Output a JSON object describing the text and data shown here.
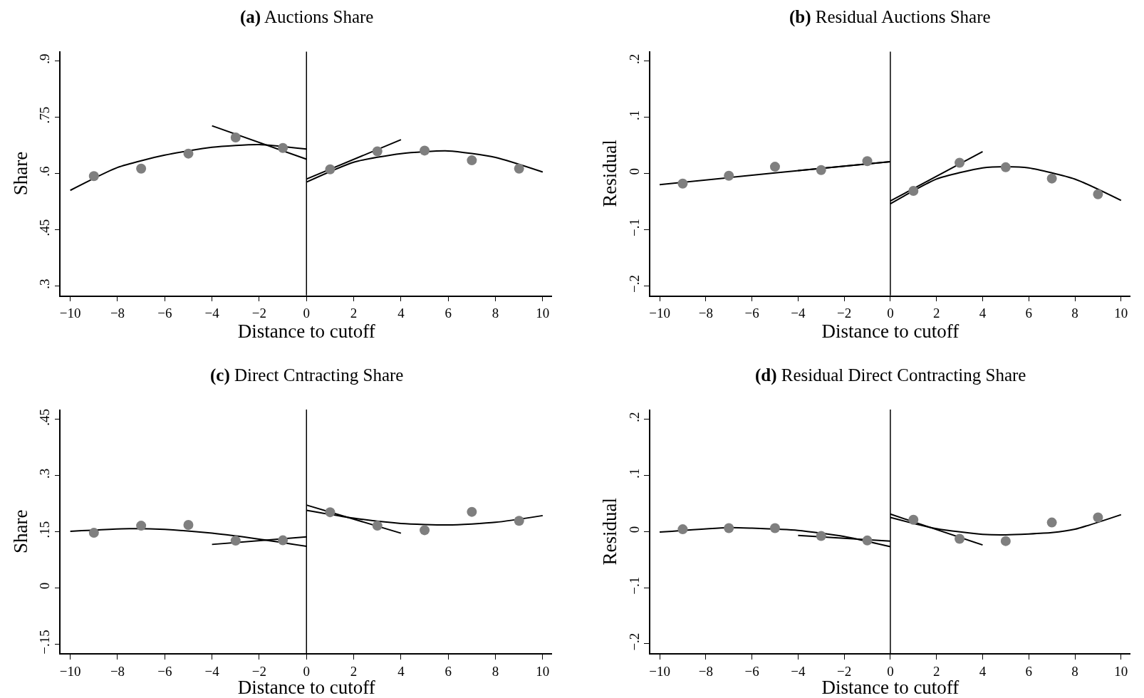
{
  "chart_data": [
    {
      "type": "scatter",
      "title": "(a) Auctions Share",
      "xlabel": "Distance to cutoff",
      "ylabel": "Share",
      "xlim": [
        -10.4,
        10.4
      ],
      "xticks": [
        -10,
        -8,
        -6,
        -4,
        -2,
        0,
        2,
        4,
        6,
        8,
        10
      ],
      "ylim": [
        0.275,
        0.925
      ],
      "yticks": [
        {
          "value": 0.3,
          "label": ".3"
        },
        {
          "value": 0.45,
          "label": ".45"
        },
        {
          "value": 0.6,
          "label": ".6"
        },
        {
          "value": 0.75,
          "label": ".75"
        },
        {
          "value": 0.9,
          "label": ".9"
        }
      ],
      "ref_lines": [
        {
          "axis": "x",
          "value": 0,
          "color": "#000000"
        }
      ],
      "series": [
        {
          "marker": "circle",
          "color": "#7f7f7f",
          "x": [
            -9,
            -7,
            -5,
            -3,
            -1,
            1,
            3,
            5,
            7,
            9
          ],
          "values": [
            0.593,
            0.613,
            0.653,
            0.696,
            0.668,
            0.611,
            0.659,
            0.661,
            0.635,
            0.613
          ]
        },
        {
          "type": "line",
          "marker": "none",
          "color": "#000000",
          "x": [
            -10,
            -8,
            -6,
            -4,
            -2,
            0
          ],
          "values": [
            0.555,
            0.616,
            0.649,
            0.67,
            0.677,
            0.665
          ]
        },
        {
          "type": "line",
          "marker": "none",
          "color": "#000000",
          "x": [
            -4,
            0
          ],
          "values": [
            0.727,
            0.638
          ]
        },
        {
          "type": "line",
          "marker": "none",
          "color": "#000000",
          "x": [
            0,
            2,
            4,
            6,
            8,
            10
          ],
          "values": [
            0.577,
            0.63,
            0.653,
            0.66,
            0.643,
            0.604
          ]
        },
        {
          "type": "line",
          "marker": "none",
          "color": "#000000",
          "x": [
            0,
            4
          ],
          "values": [
            0.585,
            0.69
          ]
        }
      ]
    },
    {
      "type": "scatter",
      "title": "(b) Residual Auctions Share",
      "xlabel": "Distance to cutoff",
      "ylabel": "Residual",
      "xlim": [
        -10.4,
        10.4
      ],
      "xticks": [
        -10,
        -8,
        -6,
        -4,
        -2,
        0,
        2,
        4,
        6,
        8,
        10
      ],
      "ylim": [
        -0.217,
        0.217
      ],
      "yticks": [
        {
          "value": -0.2,
          "label": "−.2"
        },
        {
          "value": -0.1,
          "label": "−.1"
        },
        {
          "value": 0,
          "label": "0"
        },
        {
          "value": 0.1,
          "label": ".1"
        },
        {
          "value": 0.2,
          "label": ".2"
        }
      ],
      "ref_lines": [
        {
          "axis": "x",
          "value": 0,
          "color": "#000000"
        }
      ],
      "series": [
        {
          "marker": "circle",
          "color": "#7f7f7f",
          "x": [
            -9,
            -7,
            -5,
            -3,
            -1,
            1,
            3,
            5,
            7,
            9
          ],
          "values": [
            -0.018,
            -0.004,
            0.012,
            0.006,
            0.022,
            -0.031,
            0.019,
            0.011,
            -0.009,
            -0.037
          ]
        },
        {
          "type": "line",
          "marker": "none",
          "color": "#000000",
          "x": [
            -10,
            -5,
            0
          ],
          "values": [
            -0.02,
            0.001,
            0.021
          ]
        },
        {
          "type": "line",
          "marker": "none",
          "color": "#000000",
          "x": [
            -4,
            0
          ],
          "values": [
            0.005,
            0.021
          ]
        },
        {
          "type": "line",
          "marker": "none",
          "color": "#000000",
          "x": [
            0,
            2,
            4,
            5,
            6,
            8,
            10
          ],
          "values": [
            -0.054,
            -0.01,
            0.01,
            0.012,
            0.01,
            -0.01,
            -0.048
          ]
        },
        {
          "type": "line",
          "marker": "none",
          "color": "#000000",
          "x": [
            0,
            4
          ],
          "values": [
            -0.049,
            0.039
          ]
        }
      ]
    },
    {
      "type": "scatter",
      "title": "(c) Direct Cntracting Share",
      "xlabel": "Distance to cutoff",
      "ylabel": "Share",
      "xlim": [
        -10.4,
        10.4
      ],
      "xticks": [
        -10,
        -8,
        -6,
        -4,
        -2,
        0,
        2,
        4,
        6,
        8,
        10
      ],
      "ylim": [
        -0.175,
        0.476
      ],
      "yticks": [
        {
          "value": -0.15,
          "label": "−.15"
        },
        {
          "value": 0,
          "label": "0"
        },
        {
          "value": 0.15,
          "label": ".15"
        },
        {
          "value": 0.3,
          "label": ".3"
        },
        {
          "value": 0.45,
          "label": ".45"
        }
      ],
      "ref_lines": [
        {
          "axis": "x",
          "value": 0,
          "color": "#000000"
        }
      ],
      "series": [
        {
          "marker": "circle",
          "color": "#7f7f7f",
          "x": [
            -9,
            -7,
            -5,
            -3,
            -1,
            1,
            3,
            5,
            7,
            9
          ],
          "values": [
            0.147,
            0.166,
            0.168,
            0.126,
            0.127,
            0.202,
            0.166,
            0.154,
            0.203,
            0.179
          ]
        },
        {
          "type": "line",
          "marker": "none",
          "color": "#000000",
          "x": [
            -10,
            -7.5,
            -6,
            -4,
            -2,
            0
          ],
          "values": [
            0.151,
            0.158,
            0.156,
            0.146,
            0.13,
            0.111
          ]
        },
        {
          "type": "line",
          "marker": "none",
          "color": "#000000",
          "x": [
            -4,
            0
          ],
          "values": [
            0.116,
            0.136
          ]
        },
        {
          "type": "line",
          "marker": "none",
          "color": "#000000",
          "x": [
            0,
            2,
            4,
            6,
            8,
            10
          ],
          "values": [
            0.207,
            0.186,
            0.172,
            0.168,
            0.175,
            0.193
          ]
        },
        {
          "type": "line",
          "marker": "none",
          "color": "#000000",
          "x": [
            0,
            4
          ],
          "values": [
            0.221,
            0.146
          ]
        }
      ]
    },
    {
      "type": "scatter",
      "title": "(d) Residual Direct Contracting Share",
      "xlabel": "Distance to cutoff",
      "ylabel": "Residual",
      "xlim": [
        -10.4,
        10.4
      ],
      "xticks": [
        -10,
        -8,
        -6,
        -4,
        -2,
        0,
        2,
        4,
        6,
        8,
        10
      ],
      "ylim": [
        -0.217,
        0.217
      ],
      "yticks": [
        {
          "value": -0.2,
          "label": "−.2"
        },
        {
          "value": -0.1,
          "label": "−.1"
        },
        {
          "value": 0,
          "label": "0"
        },
        {
          "value": 0.1,
          "label": ".1"
        },
        {
          "value": 0.2,
          "label": ".2"
        }
      ],
      "ref_lines": [
        {
          "axis": "x",
          "value": 0,
          "color": "#000000"
        }
      ],
      "series": [
        {
          "marker": "circle",
          "color": "#7f7f7f",
          "x": [
            -9,
            -7,
            -5,
            -3,
            -1,
            1,
            3,
            5,
            7,
            9
          ],
          "values": [
            0.004,
            0.006,
            0.006,
            -0.008,
            -0.016,
            0.021,
            -0.013,
            -0.017,
            0.016,
            0.025
          ]
        },
        {
          "type": "line",
          "marker": "none",
          "color": "#000000",
          "x": [
            -10,
            -7,
            -6,
            -4,
            -2,
            0
          ],
          "values": [
            -0.001,
            0.007,
            0.006,
            0.002,
            -0.009,
            -0.027
          ]
        },
        {
          "type": "line",
          "marker": "none",
          "color": "#000000",
          "x": [
            -4,
            0
          ],
          "values": [
            -0.007,
            -0.017
          ]
        },
        {
          "type": "line",
          "marker": "none",
          "color": "#000000",
          "x": [
            0,
            2,
            4,
            5,
            7,
            8,
            10
          ],
          "values": [
            0.025,
            0.005,
            -0.005,
            -0.006,
            -0.002,
            0.004,
            0.03
          ]
        },
        {
          "type": "line",
          "marker": "none",
          "color": "#000000",
          "x": [
            0,
            4
          ],
          "values": [
            0.031,
            -0.024
          ]
        }
      ]
    }
  ]
}
